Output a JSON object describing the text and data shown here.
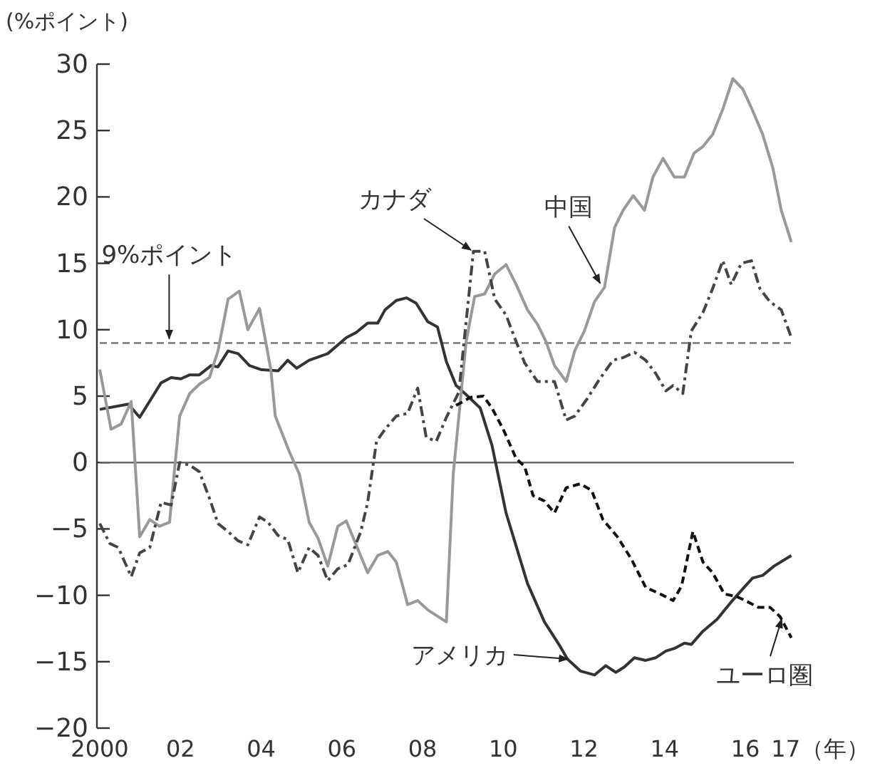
{
  "chart_data": {
    "type": "line",
    "ylabel": "(%ポイント)",
    "xlabel": "（年）",
    "xlim": [
      2000,
      2017.2
    ],
    "ylim": [
      -20,
      30
    ],
    "xticks": [
      {
        "value": 2000,
        "label": "2000"
      },
      {
        "value": 2002,
        "label": "02"
      },
      {
        "value": 2004,
        "label": "04"
      },
      {
        "value": 2006,
        "label": "06"
      },
      {
        "value": 2008,
        "label": "08"
      },
      {
        "value": 2010,
        "label": "10"
      },
      {
        "value": 2012,
        "label": "12"
      },
      {
        "value": 2014,
        "label": "14"
      },
      {
        "value": 2016,
        "label": "16"
      },
      {
        "value": 2017,
        "label": "17"
      }
    ],
    "yticks": [
      {
        "value": -20,
        "label": "−20"
      },
      {
        "value": -15,
        "label": "−15"
      },
      {
        "value": -10,
        "label": "−10"
      },
      {
        "value": -5,
        "label": "−5"
      },
      0,
      5,
      10,
      15,
      20,
      25,
      30
    ],
    "grid": false,
    "ref_lines": [
      {
        "axis": "y",
        "value": 9,
        "label": "9%ポイント",
        "color": "#777777",
        "line_style": "dashed"
      },
      {
        "axis": "y",
        "value": 0,
        "color": "#666666",
        "line_style": "solid"
      }
    ],
    "annotations": [
      {
        "text": "カナダ",
        "x": 2009.2,
        "y": 16
      },
      {
        "text": "中国",
        "x": 2012.4,
        "y": 13.5
      },
      {
        "text": "アメリカ",
        "x": 2011.6,
        "y": -14.8
      },
      {
        "text": "ユーロ圏",
        "x": 2016.9,
        "y": -11.8
      }
    ],
    "series": [
      {
        "color": "#333333",
        "line_style": "solid",
        "x": [
          2000,
          2000.71,
          2000.99,
          2001.52,
          2001.77,
          2002.01,
          2002.23,
          2002.47,
          2002.76,
          2002.93,
          2003.18,
          2003.43,
          2003.71,
          2003.99,
          2004.42,
          2004.66,
          2004.88,
          2005.19,
          2005.65,
          2006.11,
          2006.36,
          2006.64,
          2006.89,
          2007.07,
          2007.35,
          2007.6,
          2007.84,
          2008.13,
          2008.37,
          2008.59,
          2008.83,
          2009.12,
          2009.43,
          2009.72,
          2010.07,
          2010.6,
          2011.02,
          2011.38,
          2011.59,
          2011.91,
          2012.26,
          2012.54,
          2012.79,
          2013,
          2013.25,
          2013.53,
          2013.78,
          2014.03,
          2014.24,
          2014.49,
          2014.66,
          2014.95,
          2015.3,
          2015.65,
          2015.97,
          2016.18,
          2016.43,
          2016.71,
          2017.14
        ],
        "values": [
          4.0,
          4.4,
          3.4,
          6.0,
          6.4,
          6.3,
          6.6,
          6.6,
          7.3,
          7.2,
          8.4,
          8.2,
          7.3,
          7.0,
          6.9,
          7.7,
          7.1,
          7.7,
          8.2,
          9.4,
          9.8,
          10.5,
          10.5,
          11.5,
          12.2,
          12.4,
          12.0,
          10.6,
          10.2,
          7.6,
          5.8,
          5.0,
          4.1,
          1.3,
          -3.8,
          -9.1,
          -12.0,
          -13.7,
          -14.8,
          -15.7,
          -16.0,
          -15.3,
          -15.8,
          -15.4,
          -14.7,
          -14.9,
          -14.7,
          -14.2,
          -14.0,
          -13.6,
          -13.7,
          -12.7,
          -11.8,
          -10.5,
          -9.4,
          -8.7,
          -8.5,
          -7.8,
          -7.0
        ]
      },
      {
        "color": "#999999",
        "line_style": "solid",
        "x": [
          2000,
          2000.28,
          2000.53,
          2000.78,
          2000.99,
          2001.24,
          2001.48,
          2001.73,
          2001.98,
          2002.23,
          2002.47,
          2002.72,
          2002.93,
          2003.18,
          2003.46,
          2003.67,
          2003.96,
          2004.24,
          2004.35,
          2004.7,
          2004.95,
          2005.19,
          2005.41,
          2005.65,
          2005.9,
          2006.11,
          2006.64,
          2006.89,
          2007.14,
          2007.35,
          2007.63,
          2007.88,
          2008.13,
          2008.59,
          2008.76,
          2009.08,
          2009.29,
          2009.54,
          2009.79,
          2010.07,
          2010.32,
          2010.6,
          2010.85,
          2011.06,
          2011.27,
          2011.56,
          2011.77,
          2012.01,
          2012.26,
          2012.51,
          2012.76,
          2012.97,
          2013.22,
          2013.5,
          2013.71,
          2013.96,
          2014.24,
          2014.49,
          2014.73,
          2014.95,
          2015.19,
          2015.44,
          2015.69,
          2015.94,
          2016.18,
          2016.43,
          2016.68,
          2016.89,
          2017.14
        ],
        "values": [
          7.0,
          2.5,
          2.9,
          4.6,
          -5.6,
          -4.3,
          -4.8,
          -4.5,
          3.5,
          5.2,
          5.9,
          6.4,
          8.4,
          12.3,
          12.9,
          10.0,
          11.6,
          7.0,
          3.5,
          0.8,
          -0.9,
          -4.5,
          -5.7,
          -7.8,
          -4.8,
          -4.4,
          -8.3,
          -7.0,
          -6.7,
          -7.5,
          -10.7,
          -10.4,
          -11.1,
          -12.0,
          -0.9,
          9.1,
          12.5,
          12.7,
          14.2,
          14.9,
          13.4,
          11.5,
          10.4,
          9.1,
          7.3,
          6.1,
          8.4,
          9.9,
          12.1,
          13.2,
          17.7,
          19.0,
          20.1,
          19.0,
          21.5,
          22.9,
          21.5,
          21.5,
          23.3,
          23.8,
          24.7,
          26.6,
          28.9,
          28.1,
          26.5,
          24.7,
          22.2,
          19.0,
          16.6
        ]
      },
      {
        "color": "#444444",
        "line_style": "dashdot",
        "x": [
          2000,
          2000.25,
          2000.46,
          2000.78,
          2000.99,
          2001.24,
          2001.52,
          2001.77,
          2001.98,
          2002.23,
          2002.47,
          2002.72,
          2002.93,
          2003.18,
          2003.43,
          2003.67,
          2003.96,
          2004.17,
          2004.42,
          2004.66,
          2004.91,
          2005.19,
          2005.41,
          2005.65,
          2005.9,
          2006.15,
          2006.47,
          2006.64,
          2006.86,
          2007.07,
          2007.35,
          2007.63,
          2007.88,
          2008.09,
          2008.34,
          2008.59,
          2008.9,
          2009.26,
          2009.54,
          2009.79,
          2010.07,
          2010.32,
          2010.53,
          2010.85,
          2011.27,
          2011.56,
          2011.77,
          2012.08,
          2012.37,
          2012.72,
          2012.97,
          2013.25,
          2013.53,
          2013.78,
          2014.03,
          2014.21,
          2014.45,
          2014.66,
          2014.95,
          2015.19,
          2015.44,
          2015.65,
          2015.9,
          2016.15,
          2016.36,
          2016.61,
          2016.89,
          2017.14
        ],
        "values": [
          -4.6,
          -6.1,
          -6.4,
          -8.6,
          -6.8,
          -6.4,
          -3.0,
          -3.2,
          0.0,
          -0.2,
          -0.7,
          -2.7,
          -4.6,
          -5.2,
          -5.9,
          -6.2,
          -4.1,
          -4.5,
          -5.5,
          -5.8,
          -8.3,
          -6.4,
          -7.0,
          -8.9,
          -8.0,
          -7.7,
          -5.2,
          -3.0,
          1.6,
          2.5,
          3.5,
          3.7,
          5.6,
          1.9,
          1.6,
          3.4,
          5.3,
          15.9,
          15.9,
          12.3,
          11.1,
          9.1,
          7.5,
          6.1,
          6.1,
          3.2,
          3.5,
          4.8,
          6.2,
          7.7,
          7.9,
          8.3,
          7.7,
          6.7,
          5.4,
          5.8,
          5.2,
          9.9,
          11.3,
          13.1,
          15.2,
          13.4,
          15.0,
          15.2,
          13.1,
          12.1,
          11.5,
          9.4
        ]
      },
      {
        "color": "#111111",
        "line_style": "dashed",
        "x": [
          2008.83,
          2009.19,
          2009.51,
          2009.72,
          2010.0,
          2010.32,
          2010.53,
          2010.74,
          2011.02,
          2011.27,
          2011.56,
          2011.91,
          2012.19,
          2012.47,
          2012.83,
          2013.18,
          2013.53,
          2013.89,
          2014.21,
          2014.42,
          2014.7,
          2014.95,
          2015.19,
          2015.48,
          2015.79,
          2016.0,
          2016.32,
          2016.61,
          2016.86,
          2017.14
        ],
        "values": [
          4.3,
          4.9,
          5.0,
          4.1,
          2.5,
          0.3,
          -0.3,
          -2.5,
          -2.9,
          -3.8,
          -1.9,
          -1.6,
          -2.1,
          -4.3,
          -5.6,
          -7.3,
          -9.4,
          -9.9,
          -10.4,
          -9.3,
          -5.2,
          -7.5,
          -8.3,
          -9.9,
          -10.1,
          -10.4,
          -10.9,
          -10.9,
          -11.6,
          -13.2
        ]
      }
    ]
  }
}
